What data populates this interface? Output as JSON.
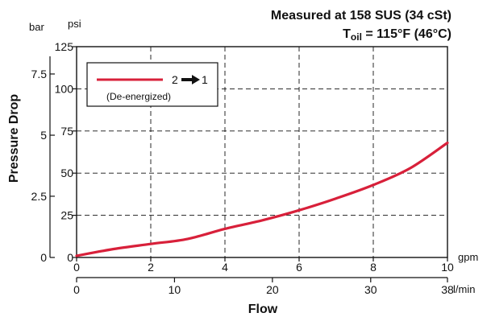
{
  "chart_data": {
    "type": "line",
    "title_line1": "Measured at 158 SUS  (34 cSt)",
    "title_line2_main": "T",
    "title_line2_sub": "oil",
    "title_line2_rest": " = 115°F  (46°C)",
    "xlabel": "Flow",
    "ylabel": "Pressure Drop",
    "x_primary": {
      "unit": "gpm",
      "min": 0,
      "max": 10,
      "ticks": [
        "0",
        "2",
        "4",
        "6",
        "8",
        "10"
      ]
    },
    "x_secondary": {
      "unit": "l/min",
      "ticks": [
        {
          "label": "0",
          "gpm": 0
        },
        {
          "label": "10",
          "gpm": 2.64
        },
        {
          "label": "20",
          "gpm": 5.28
        },
        {
          "label": "30",
          "gpm": 7.93
        },
        {
          "label": "38",
          "gpm": 10
        }
      ]
    },
    "y_primary": {
      "unit": "psi",
      "min": 0,
      "max": 125,
      "ticks": [
        "0",
        "25",
        "50",
        "75",
        "100",
        "125"
      ]
    },
    "y_secondary": {
      "unit": "bar",
      "ticks": [
        {
          "label": "0",
          "psi": 0
        },
        {
          "label": "2.5",
          "psi": 36.3
        },
        {
          "label": "5",
          "psi": 72.5
        },
        {
          "label": "7.5",
          "psi": 108.8
        }
      ]
    },
    "grid": true,
    "legend": {
      "placement": "top-left",
      "label": "2",
      "arrow_target": "1",
      "note": "(De-energized)"
    },
    "series": [
      {
        "color": "#d8203a",
        "x": [
          0,
          1,
          2,
          3,
          4,
          5,
          6,
          7,
          8,
          9,
          10
        ],
        "y": [
          1,
          5,
          8,
          11,
          17,
          22,
          28,
          35,
          43,
          53,
          68
        ]
      }
    ]
  }
}
